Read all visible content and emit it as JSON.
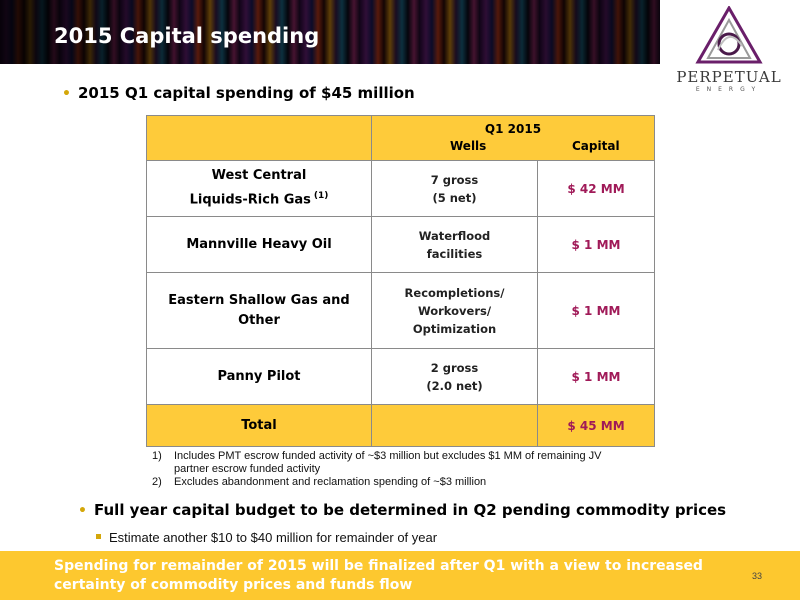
{
  "header": {
    "title": "2015 Capital spending"
  },
  "logo": {
    "name": "PERPETUAL",
    "sub": "ENERGY"
  },
  "main_bullet": "2015 Q1 capital spending of $45 million",
  "table": {
    "header_period": "Q1 2015",
    "header_wells": "Wells",
    "header_capital": "Capital",
    "rows": [
      {
        "label_line1": "West Central",
        "label_line2": "Liquids-Rich Gas",
        "note": "(1)",
        "wells_line1": "7 gross",
        "wells_line2": "(5 net)",
        "wells_line3": "",
        "capital": "$ 42 MM"
      },
      {
        "label_line1": "Mannville Heavy Oil",
        "label_line2": "",
        "note": "",
        "wells_line1": "Waterflood",
        "wells_line2": "facilities",
        "wells_line3": "",
        "capital": "$ 1 MM"
      },
      {
        "label_line1": "Eastern Shallow Gas and",
        "label_line2": "Other",
        "note": "",
        "wells_line1": "Recompletions/",
        "wells_line2": "Workovers/",
        "wells_line3": "Optimization",
        "capital": "$ 1 MM"
      },
      {
        "label_line1": "Panny Pilot",
        "label_line2": "",
        "note": "",
        "wells_line1": "2 gross",
        "wells_line2": "(2.0 net)",
        "wells_line3": "",
        "capital": "$ 1 MM"
      }
    ],
    "total_label": "Total",
    "total_capital": "$ 45 MM"
  },
  "footnotes": [
    {
      "num": "1)",
      "text": "Includes PMT escrow funded activity of ~$3 million but excludes $1 MM of remaining JV partner escrow funded activity"
    },
    {
      "num": "2)",
      "text": "Excludes abandonment and reclamation spending of ~$3 million"
    }
  ],
  "second_bullet": "Full year capital budget to be determined in Q2 pending commodity prices",
  "sub_bullet": "Estimate another $10 to $40 million for remainder of year",
  "footer": {
    "line1": "Spending for remainder of 2015 will be finalized after Q1 with a view to increased",
    "line2": "certainty of commodity prices and funds flow",
    "page": "33"
  },
  "colors": {
    "gold": "#fecb3a",
    "capital_text": "#a01a58",
    "footer_bg": "#fdc82f"
  }
}
